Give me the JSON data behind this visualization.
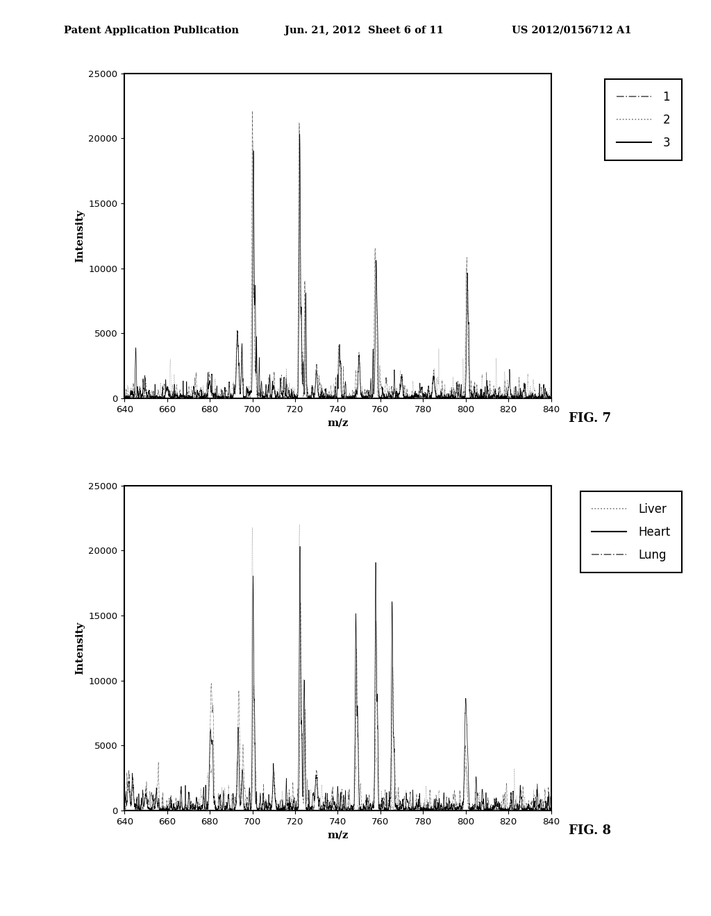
{
  "fig_width": 10.24,
  "fig_height": 13.2,
  "dpi": 100,
  "bg_color": "#ffffff",
  "header_left": "Patent Application Publication",
  "header_mid": "Jun. 21, 2012  Sheet 6 of 11",
  "header_right": "US 2012/0156712 A1",
  "header_fontsize": 10.5,
  "plot1": {
    "xlabel": "m/z",
    "ylabel": "Intensity",
    "xlim": [
      640,
      840
    ],
    "ylim": [
      0,
      25000
    ],
    "yticks": [
      0,
      5000,
      10000,
      15000,
      20000,
      25000
    ],
    "xticks": [
      640,
      660,
      680,
      700,
      720,
      740,
      760,
      780,
      800,
      820,
      840
    ],
    "fig_label": "FIG. 7",
    "legend_labels": [
      "1",
      "2",
      "3"
    ]
  },
  "plot2": {
    "xlabel": "m/z",
    "ylabel": "Intensity",
    "xlim": [
      640,
      840
    ],
    "ylim": [
      0,
      25000
    ],
    "yticks": [
      0,
      5000,
      10000,
      15000,
      20000,
      25000
    ],
    "xticks": [
      640,
      660,
      680,
      700,
      720,
      740,
      760,
      780,
      800,
      820,
      840
    ],
    "fig_label": "FIG. 8",
    "legend_labels": [
      "Liver",
      "Heart",
      "Lung"
    ]
  }
}
